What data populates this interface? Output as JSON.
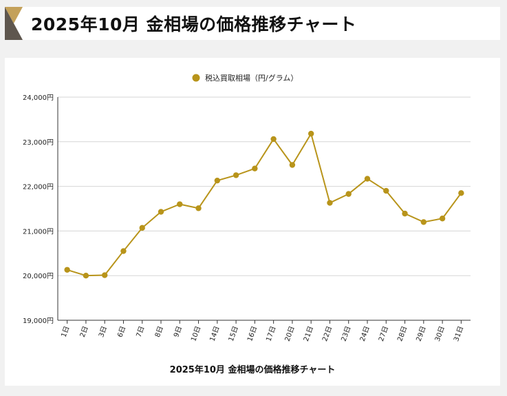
{
  "header": {
    "title": "2025年10月 金相場の価格推移チャート"
  },
  "colors": {
    "accent": "#b8941a",
    "logo_light": "#c4a15a",
    "logo_dark": "#5e564e",
    "grid": "#d6d6d6"
  },
  "chart_data": {
    "type": "line",
    "title": "2025年10月 金相場の価格推移チャート",
    "legend_position": "top-center",
    "grid": true,
    "categories": [
      "1日",
      "2日",
      "3日",
      "6日",
      "7日",
      "8日",
      "9日",
      "10日",
      "14日",
      "15日",
      "16日",
      "17日",
      "20日",
      "21日",
      "22日",
      "23日",
      "24日",
      "27日",
      "28日",
      "29日",
      "30日",
      "31日"
    ],
    "series": [
      {
        "name": "税込買取相場（円/グラム）",
        "color": "#b8941a",
        "values": [
          20130,
          20000,
          20010,
          20550,
          21070,
          21430,
          21600,
          21510,
          22130,
          22250,
          22400,
          23060,
          22480,
          23180,
          21630,
          21830,
          22170,
          21900,
          21390,
          21200,
          21280,
          21850
        ]
      }
    ],
    "ylim": [
      19000,
      24000
    ],
    "yticks": [
      19000,
      20000,
      21000,
      22000,
      23000,
      24000
    ],
    "ytick_labels": [
      "19,000円",
      "20,000円",
      "21,000円",
      "22,000円",
      "23,000円",
      "24,000円"
    ]
  }
}
